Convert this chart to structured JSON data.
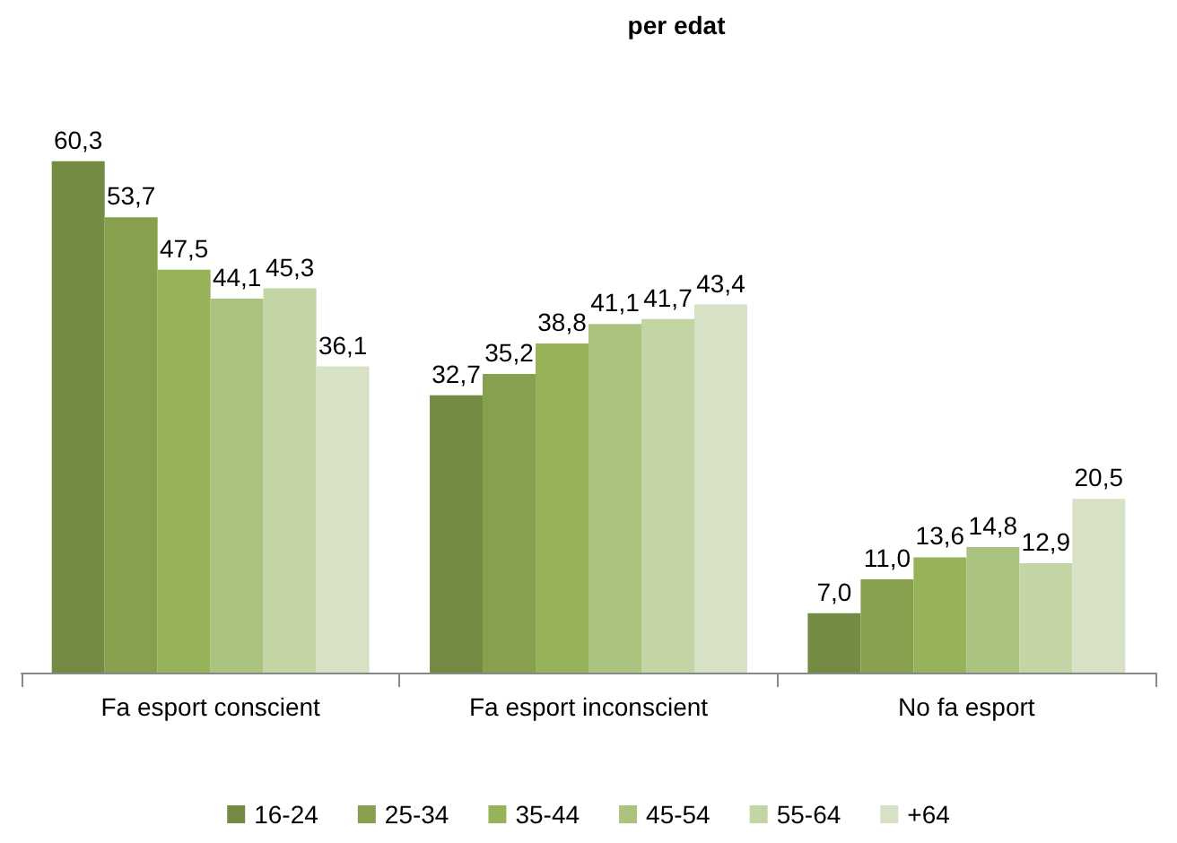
{
  "chart_data": {
    "type": "bar",
    "title": "per edat",
    "categories": [
      "Fa esport conscient",
      "Fa esport inconscient",
      "No fa esport"
    ],
    "series": [
      {
        "name": "16-24",
        "color": "#738b42",
        "values": [
          60.3,
          32.7,
          7.0
        ],
        "value_labels": [
          "60,3",
          "32,7",
          "7,0"
        ]
      },
      {
        "name": "25-34",
        "color": "#86a04e",
        "values": [
          53.7,
          35.2,
          11.0
        ],
        "value_labels": [
          "53,7",
          "35,2",
          "11,0"
        ]
      },
      {
        "name": "35-44",
        "color": "#97b35a",
        "values": [
          47.5,
          38.8,
          13.6
        ],
        "value_labels": [
          "47,5",
          "38,8",
          "13,6"
        ]
      },
      {
        "name": "45-54",
        "color": "#aac37f",
        "values": [
          44.1,
          41.1,
          14.8
        ],
        "value_labels": [
          "44,1",
          "41,1",
          "14,8"
        ]
      },
      {
        "name": "55-64",
        "color": "#c3d4a5",
        "values": [
          45.3,
          41.7,
          12.9
        ],
        "value_labels": [
          "45,3",
          "41,7",
          "12,9"
        ]
      },
      {
        "name": "+64",
        "color": "#d7e1c5",
        "values": [
          36.1,
          43.4,
          20.5
        ],
        "value_labels": [
          "36,1",
          "43,4",
          "20,5"
        ]
      }
    ],
    "legend": "bottom"
  }
}
